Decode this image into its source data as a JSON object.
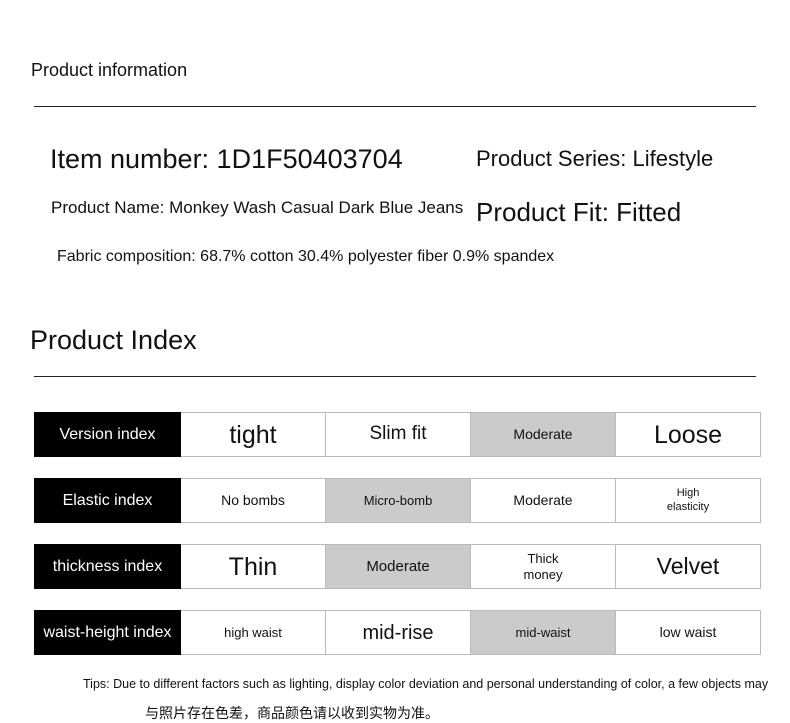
{
  "header": {
    "title": "Product information"
  },
  "info": {
    "item_number": "Item number: 1D1F50403704",
    "series": "Product Series: Lifestyle",
    "name": "Product Name: Monkey Wash Casual Dark Blue Jeans",
    "fit": "Product Fit: Fitted",
    "fabric": "Fabric composition: 68.7% cotton 30.4% polyester fiber 0.9% spandex"
  },
  "index": {
    "title": "Product Index",
    "highlight_color": "#cbcbcb",
    "rows": [
      {
        "label": "Version index",
        "cells": [
          [
            "tight"
          ],
          [
            "Slim fit"
          ],
          [
            "Moderate"
          ],
          [
            "Loose"
          ]
        ],
        "selected": 2
      },
      {
        "label": "Elastic index",
        "cells": [
          [
            "No bombs"
          ],
          [
            "Micro-bomb"
          ],
          [
            "Moderate"
          ],
          [
            "High",
            "elasticity"
          ]
        ],
        "selected": 1
      },
      {
        "label": "thickness index",
        "cells": [
          [
            "Thin"
          ],
          [
            "Moderate"
          ],
          [
            "Thick",
            "money"
          ]
        ],
        "selected": 1,
        "extra": [
          [
            "Velvet"
          ]
        ]
      },
      {
        "label": "waist-height index",
        "cells": [
          [
            "high waist"
          ],
          [
            "mid-rise"
          ],
          [
            "mid-waist"
          ],
          [
            "low waist"
          ]
        ],
        "selected": 2
      }
    ]
  },
  "tips": {
    "line1": "Tips: Due to different factors such as lighting, display color deviation and personal understanding of color, a few objects may",
    "line2": "与照片存在色差，商品颜色请以收到实物为准。"
  }
}
